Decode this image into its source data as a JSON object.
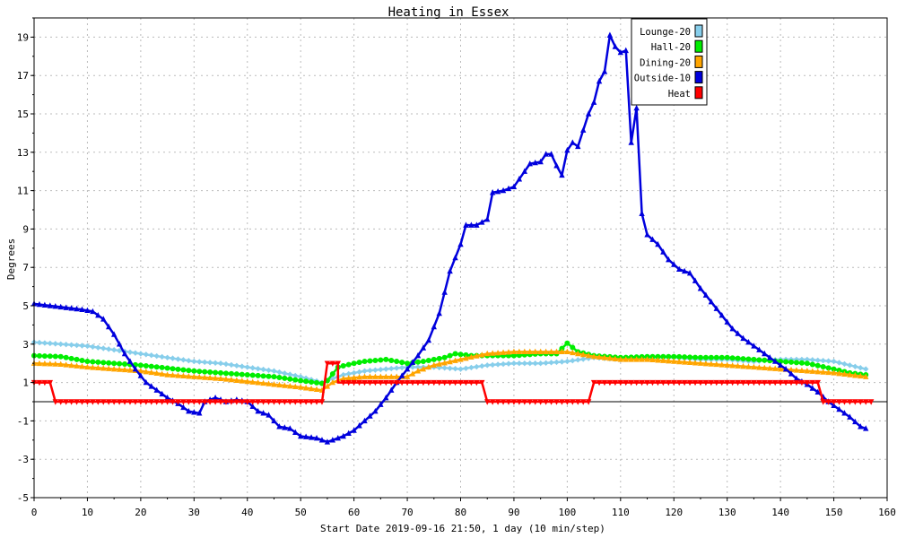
{
  "chart_data": {
    "type": "line",
    "title": "Heating in Essex",
    "xlabel": "Start Date 2019-09-16 21:50, 1 day (10 min/step)",
    "ylabel": "Degrees",
    "xlim": [
      0,
      160
    ],
    "ylim": [
      -5,
      20
    ],
    "x_ticks": [
      0,
      10,
      20,
      30,
      40,
      50,
      60,
      70,
      80,
      90,
      100,
      110,
      120,
      130,
      140,
      150,
      160
    ],
    "y_ticks": [
      -5,
      -3,
      -1,
      1,
      3,
      5,
      7,
      9,
      11,
      13,
      15,
      17,
      19
    ],
    "grid": true,
    "zero_line": true,
    "legend_position": "top-right",
    "series": [
      {
        "name": "Lounge-20",
        "color": "#87CEEB",
        "marker": "diamond",
        "points": [
          [
            0,
            3.1
          ],
          [
            5,
            3.0
          ],
          [
            10,
            2.9
          ],
          [
            15,
            2.7
          ],
          [
            20,
            2.5
          ],
          [
            25,
            2.3
          ],
          [
            30,
            2.1
          ],
          [
            35,
            2.0
          ],
          [
            40,
            1.8
          ],
          [
            45,
            1.6
          ],
          [
            50,
            1.3
          ],
          [
            54,
            1.0
          ],
          [
            56,
            1.2
          ],
          [
            58,
            1.4
          ],
          [
            62,
            1.6
          ],
          [
            66,
            1.7
          ],
          [
            70,
            1.8
          ],
          [
            75,
            1.8
          ],
          [
            80,
            1.7
          ],
          [
            85,
            1.9
          ],
          [
            90,
            2.0
          ],
          [
            95,
            2.0
          ],
          [
            100,
            2.1
          ],
          [
            105,
            2.3
          ],
          [
            110,
            2.2
          ],
          [
            115,
            2.3
          ],
          [
            120,
            2.3
          ],
          [
            125,
            2.2
          ],
          [
            130,
            2.2
          ],
          [
            135,
            2.1
          ],
          [
            140,
            2.2
          ],
          [
            145,
            2.2
          ],
          [
            150,
            2.1
          ],
          [
            153,
            1.9
          ],
          [
            156,
            1.7
          ]
        ]
      },
      {
        "name": "Hall-20",
        "color": "#00EE00",
        "marker": "circle",
        "points": [
          [
            0,
            2.4
          ],
          [
            5,
            2.35
          ],
          [
            10,
            2.1
          ],
          [
            15,
            2.0
          ],
          [
            20,
            1.9
          ],
          [
            25,
            1.75
          ],
          [
            30,
            1.6
          ],
          [
            35,
            1.5
          ],
          [
            40,
            1.4
          ],
          [
            45,
            1.3
          ],
          [
            50,
            1.1
          ],
          [
            54,
            0.95
          ],
          [
            55,
            1.1
          ],
          [
            57,
            1.8
          ],
          [
            60,
            2.0
          ],
          [
            62,
            2.1
          ],
          [
            66,
            2.2
          ],
          [
            70,
            2.0
          ],
          [
            73,
            2.1
          ],
          [
            77,
            2.3
          ],
          [
            79,
            2.5
          ],
          [
            82,
            2.4
          ],
          [
            85,
            2.4
          ],
          [
            90,
            2.4
          ],
          [
            95,
            2.5
          ],
          [
            98,
            2.5
          ],
          [
            100,
            3.05
          ],
          [
            102,
            2.6
          ],
          [
            105,
            2.4
          ],
          [
            110,
            2.3
          ],
          [
            115,
            2.35
          ],
          [
            120,
            2.35
          ],
          [
            125,
            2.3
          ],
          [
            130,
            2.3
          ],
          [
            135,
            2.2
          ],
          [
            140,
            2.1
          ],
          [
            145,
            2.0
          ],
          [
            150,
            1.7
          ],
          [
            153,
            1.5
          ],
          [
            156,
            1.4
          ]
        ]
      },
      {
        "name": "Dining-20",
        "color": "#FFA500",
        "marker": "triangle",
        "points": [
          [
            0,
            2.0
          ],
          [
            5,
            1.95
          ],
          [
            10,
            1.8
          ],
          [
            15,
            1.7
          ],
          [
            20,
            1.6
          ],
          [
            25,
            1.4
          ],
          [
            30,
            1.3
          ],
          [
            35,
            1.2
          ],
          [
            40,
            1.05
          ],
          [
            45,
            0.9
          ],
          [
            50,
            0.75
          ],
          [
            54,
            0.6
          ],
          [
            56,
            1.0
          ],
          [
            58,
            1.2
          ],
          [
            62,
            1.3
          ],
          [
            66,
            1.3
          ],
          [
            70,
            1.3
          ],
          [
            72,
            1.6
          ],
          [
            75,
            1.9
          ],
          [
            80,
            2.2
          ],
          [
            85,
            2.5
          ],
          [
            90,
            2.6
          ],
          [
            95,
            2.6
          ],
          [
            100,
            2.6
          ],
          [
            105,
            2.35
          ],
          [
            110,
            2.2
          ],
          [
            115,
            2.2
          ],
          [
            120,
            2.1
          ],
          [
            125,
            2.0
          ],
          [
            130,
            1.9
          ],
          [
            135,
            1.8
          ],
          [
            140,
            1.7
          ],
          [
            145,
            1.6
          ],
          [
            150,
            1.5
          ],
          [
            153,
            1.4
          ],
          [
            156,
            1.3
          ]
        ]
      },
      {
        "name": "Outside-10",
        "color": "#0000DD",
        "marker": "triangle",
        "points": [
          [
            0,
            5.1
          ],
          [
            3,
            5.0
          ],
          [
            6,
            4.9
          ],
          [
            9,
            4.8
          ],
          [
            11,
            4.7
          ],
          [
            13,
            4.3
          ],
          [
            15,
            3.5
          ],
          [
            17,
            2.5
          ],
          [
            19,
            1.7
          ],
          [
            21,
            1.0
          ],
          [
            23,
            0.6
          ],
          [
            25,
            0.2
          ],
          [
            27,
            -0.1
          ],
          [
            29,
            -0.5
          ],
          [
            31,
            -0.6
          ],
          [
            32,
            0.0
          ],
          [
            34,
            0.2
          ],
          [
            36,
            0.0
          ],
          [
            38,
            0.1
          ],
          [
            40,
            0.0
          ],
          [
            42,
            -0.5
          ],
          [
            44,
            -0.7
          ],
          [
            46,
            -1.3
          ],
          [
            48,
            -1.4
          ],
          [
            50,
            -1.8
          ],
          [
            53,
            -1.9
          ],
          [
            55,
            -2.1
          ],
          [
            58,
            -1.8
          ],
          [
            60,
            -1.5
          ],
          [
            62,
            -1.0
          ],
          [
            64,
            -0.5
          ],
          [
            66,
            0.2
          ],
          [
            68,
            1.0
          ],
          [
            70,
            1.7
          ],
          [
            72,
            2.4
          ],
          [
            74,
            3.2
          ],
          [
            76,
            4.6
          ],
          [
            78,
            6.8
          ],
          [
            80,
            8.2
          ],
          [
            81,
            9.2
          ],
          [
            83,
            9.2
          ],
          [
            85,
            9.5
          ],
          [
            86,
            10.9
          ],
          [
            88,
            11.0
          ],
          [
            90,
            11.2
          ],
          [
            92,
            12.0
          ],
          [
            93,
            12.4
          ],
          [
            95,
            12.5
          ],
          [
            96,
            12.9
          ],
          [
            97,
            12.9
          ],
          [
            98,
            12.3
          ],
          [
            99,
            11.8
          ],
          [
            100,
            13.1
          ],
          [
            101,
            13.5
          ],
          [
            102,
            13.3
          ],
          [
            104,
            15.0
          ],
          [
            105,
            15.6
          ],
          [
            106,
            16.7
          ],
          [
            107,
            17.2
          ],
          [
            108,
            19.1
          ],
          [
            109,
            18.5
          ],
          [
            110,
            18.2
          ],
          [
            111,
            18.3
          ],
          [
            112,
            13.5
          ],
          [
            113,
            15.3
          ],
          [
            114,
            9.8
          ],
          [
            115,
            8.7
          ],
          [
            117,
            8.2
          ],
          [
            119,
            7.4
          ],
          [
            121,
            6.9
          ],
          [
            123,
            6.7
          ],
          [
            125,
            5.9
          ],
          [
            127,
            5.2
          ],
          [
            129,
            4.5
          ],
          [
            131,
            3.8
          ],
          [
            133,
            3.3
          ],
          [
            135,
            2.9
          ],
          [
            137,
            2.5
          ],
          [
            139,
            2.1
          ],
          [
            141,
            1.7
          ],
          [
            143,
            1.2
          ],
          [
            145,
            0.9
          ],
          [
            147,
            0.5
          ],
          [
            149,
            0.0
          ],
          [
            151,
            -0.4
          ],
          [
            153,
            -0.8
          ],
          [
            155,
            -1.3
          ],
          [
            156,
            -1.4
          ]
        ]
      },
      {
        "name": "Heat",
        "color": "#FF0000",
        "marker": "triangle-down",
        "points": [
          [
            0,
            1.0
          ],
          [
            3,
            1.0
          ],
          [
            4,
            0.0
          ],
          [
            54,
            0.0
          ],
          [
            55,
            2.0
          ],
          [
            57,
            2.0
          ],
          [
            57,
            1.0
          ],
          [
            84,
            1.0
          ],
          [
            85,
            0.0
          ],
          [
            104,
            0.0
          ],
          [
            105,
            1.0
          ],
          [
            147,
            1.0
          ],
          [
            148,
            0.0
          ],
          [
            157,
            0.0
          ]
        ]
      }
    ]
  }
}
